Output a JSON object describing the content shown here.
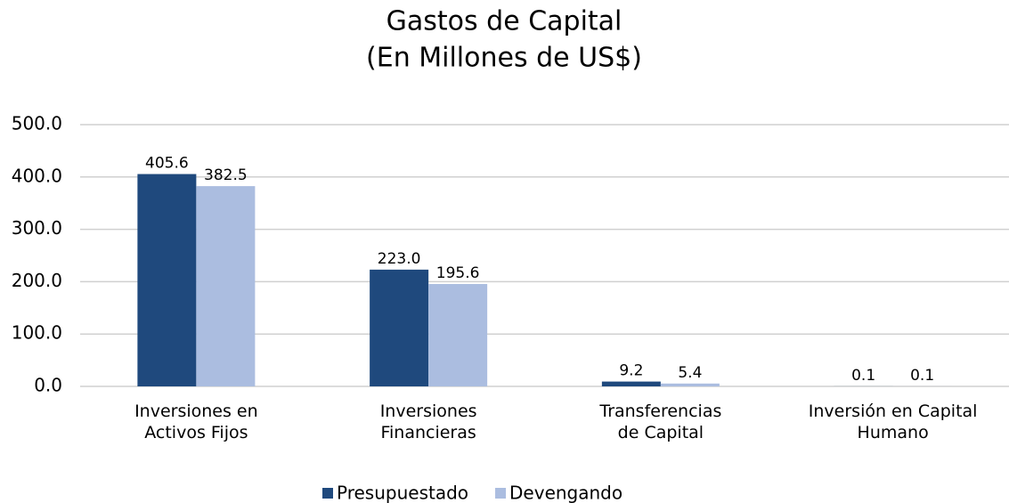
{
  "chart_data": {
    "type": "bar",
    "title": [
      "Gastos de Capital",
      "(En Millones de US$)"
    ],
    "categories": [
      "Inversiones en\nActivos Fijos",
      "Inversiones\nFinancieras",
      "Transferencias\nde Capital",
      "Inversión en Capital\nHumano"
    ],
    "series": [
      {
        "name": "Presupuestado",
        "color": "#1f497d",
        "values": [
          405.6,
          223.0,
          9.2,
          0.1
        ],
        "value_labels": [
          "405.6",
          "223.0",
          "9.2",
          "0.1"
        ]
      },
      {
        "name": "Devengando",
        "color": "#abbde0",
        "values": [
          382.5,
          195.6,
          5.4,
          0.1
        ],
        "value_labels": [
          "382.5",
          "195.6",
          "5.4",
          "0.1"
        ]
      }
    ],
    "ylim": [
      0,
      500
    ],
    "yticks": [
      {
        "value": 0,
        "label": "0.0"
      },
      {
        "value": 100,
        "label": "100.0"
      },
      {
        "value": 200,
        "label": "200.0"
      },
      {
        "value": 300,
        "label": "300.0"
      },
      {
        "value": 400,
        "label": "400.0"
      },
      {
        "value": 500,
        "label": "500.0"
      }
    ],
    "grid": true,
    "legend": "bottom"
  }
}
